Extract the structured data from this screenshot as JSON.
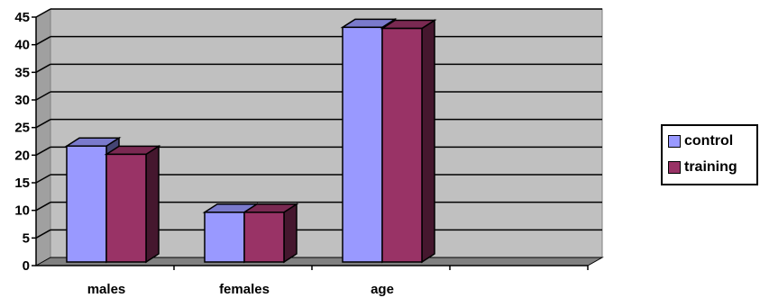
{
  "chart_data": {
    "type": "bar",
    "categories": [
      "males",
      "females",
      "age"
    ],
    "series": [
      {
        "name": "control",
        "values": [
          21,
          9,
          42.5
        ],
        "color": "#9999ff"
      },
      {
        "name": "training",
        "values": [
          19.5,
          9,
          42.3
        ],
        "color": "#993366"
      }
    ],
    "ylim": [
      0,
      45
    ],
    "yticks": [
      0,
      5,
      10,
      15,
      20,
      25,
      30,
      35,
      40,
      45
    ],
    "grid": true,
    "legend_position": "right",
    "title": "",
    "xlabel": "",
    "ylabel": "",
    "wall_color": "#c0c0c0",
    "floor_color": "#808080"
  }
}
